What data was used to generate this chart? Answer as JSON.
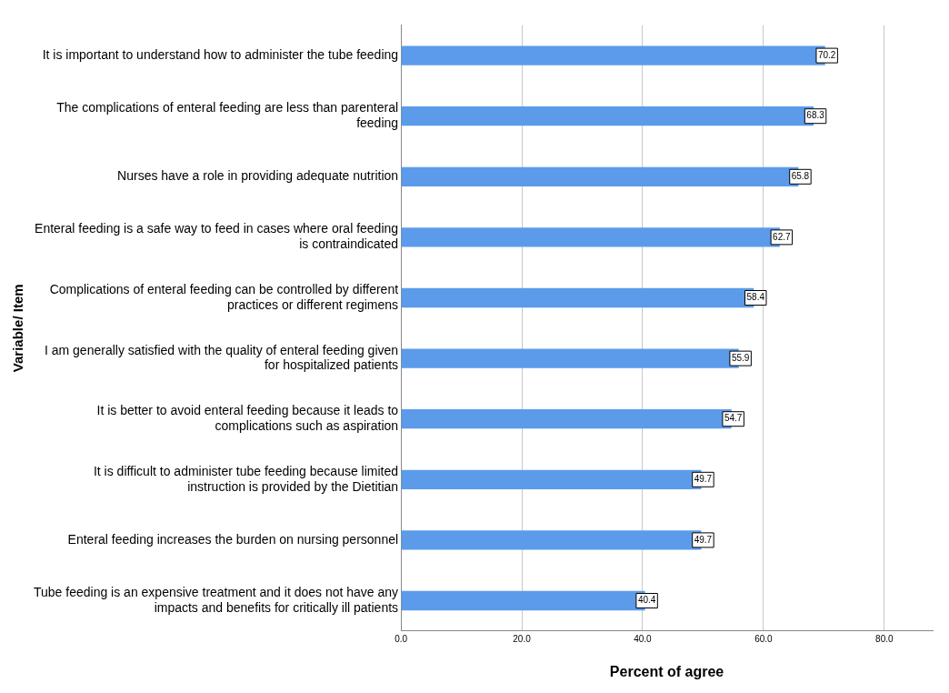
{
  "chart_data": {
    "type": "bar",
    "orientation": "horizontal",
    "xlabel": "Percent of agree",
    "ylabel": "Variable/ Item",
    "categories": [
      "It is important to understand how to administer the tube feeding",
      "The complications of enteral feeding are less than parenteral feeding",
      "Nurses have a role in providing adequate nutrition",
      "Enteral feeding is a safe way to feed in cases where oral feeding is contraindicated",
      "Complications of enteral feeding can be controlled by different practices or different regimens",
      "I am generally satisfied with the quality of enteral feeding given for hospitalized patients",
      "It is better to avoid enteral feeding because it leads to complications such as aspiration",
      "It is difficult to administer tube feeding because limited instruction is provided by the Dietitian",
      "Enteral feeding increases the burden on nursing personnel",
      "Tube feeding is an expensive treatment and it does not have any impacts and benefits for critically ill patients"
    ],
    "values": [
      70.2,
      68.3,
      65.8,
      62.7,
      58.4,
      55.9,
      54.7,
      49.7,
      49.7,
      40.4
    ],
    "color": "#5b9bea",
    "xlim": [
      0,
      88
    ],
    "xticks": [
      {
        "value": 0,
        "label": "0.0"
      },
      {
        "value": 20,
        "label": "20.0"
      },
      {
        "value": 40,
        "label": "40.0"
      },
      {
        "value": 60,
        "label": "60.0"
      },
      {
        "value": 80,
        "label": "80.0"
      }
    ],
    "grid": "x",
    "data_labels": true,
    "legend": false
  }
}
